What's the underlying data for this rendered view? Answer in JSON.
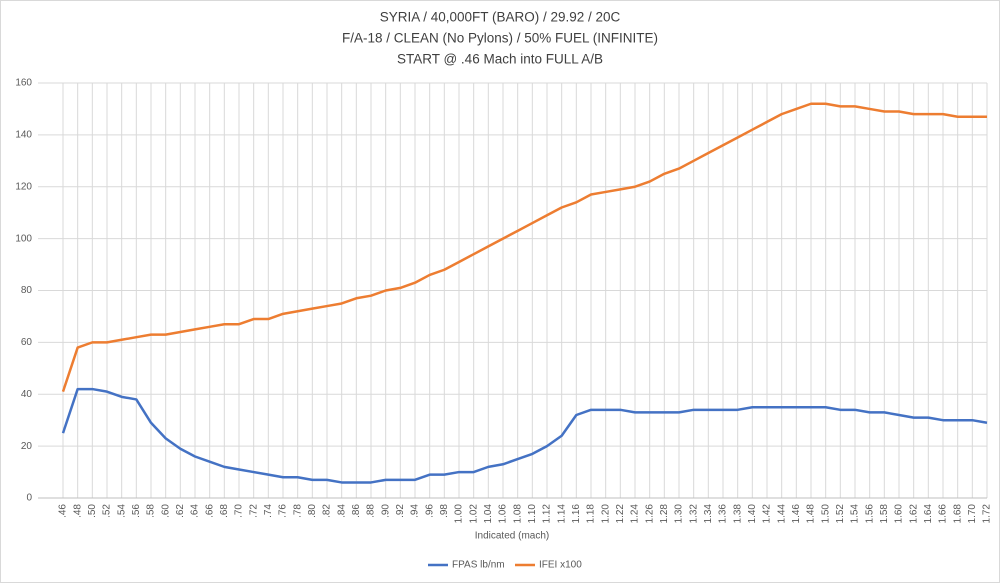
{
  "chart_data": {
    "type": "line",
    "title": [
      "SYRIA / 40,000FT (BARO) / 29.92 / 20C",
      "F/A-18 / CLEAN (No Pylons) / 50% FUEL (INFINITE)",
      "START @ .46 Mach into FULL A/B"
    ],
    "x_label": "Indicated (mach)",
    "categories": [
      ".46",
      ".48",
      ".50",
      ".52",
      ".54",
      ".56",
      ".58",
      ".60",
      ".62",
      ".64",
      ".66",
      ".68",
      ".70",
      ".72",
      ".74",
      ".76",
      ".78",
      ".80",
      ".82",
      ".84",
      ".86",
      ".88",
      ".90",
      ".92",
      ".94",
      ".96",
      ".98",
      "1.00",
      "1.02",
      "1.04",
      "1.06",
      "1.08",
      "1.10",
      "1.12",
      "1.14",
      "1.16",
      "1.18",
      "1.20",
      "1.22",
      "1.24",
      "1.26",
      "1.28",
      "1.30",
      "1.32",
      "1.34",
      "1.36",
      "1.38",
      "1.40",
      "1.42",
      "1.44",
      "1.46",
      "1.48",
      "1.50",
      "1.52",
      "1.54",
      "1.56",
      "1.58",
      "1.60",
      "1.62",
      "1.64",
      "1.66",
      "1.68",
      "1.70",
      "1.72"
    ],
    "series": [
      {
        "name": "FPAS lb/nm",
        "color": "#4472c4",
        "values": [
          25,
          42,
          42,
          41,
          39,
          38,
          29,
          23,
          19,
          16,
          14,
          12,
          11,
          10,
          9,
          8,
          8,
          7,
          7,
          6,
          6,
          6,
          7,
          7,
          7,
          9,
          9,
          10,
          10,
          12,
          13,
          15,
          17,
          20,
          24,
          32,
          34,
          34,
          34,
          33,
          33,
          33,
          33,
          34,
          34,
          34,
          34,
          35,
          35,
          35,
          35,
          35,
          35,
          34,
          34,
          33,
          33,
          32,
          31,
          31,
          30,
          30,
          30,
          29
        ]
      },
      {
        "name": "IFEI x100",
        "color": "#ed7d31",
        "values": [
          41,
          58,
          60,
          60,
          61,
          62,
          63,
          63,
          64,
          65,
          66,
          67,
          67,
          69,
          69,
          71,
          72,
          73,
          74,
          75,
          77,
          78,
          80,
          81,
          83,
          86,
          88,
          91,
          94,
          97,
          100,
          103,
          106,
          109,
          112,
          114,
          117,
          118,
          119,
          120,
          122,
          125,
          127,
          130,
          133,
          136,
          139,
          142,
          145,
          148,
          150,
          152,
          152,
          151,
          151,
          150,
          149,
          149,
          148,
          148,
          148,
          147,
          147,
          147
        ]
      }
    ],
    "ylim": [
      0,
      160
    ],
    "yticks": [
      0,
      20,
      40,
      60,
      80,
      100,
      120,
      140,
      160
    ],
    "grid": true,
    "legend": "bottom"
  }
}
